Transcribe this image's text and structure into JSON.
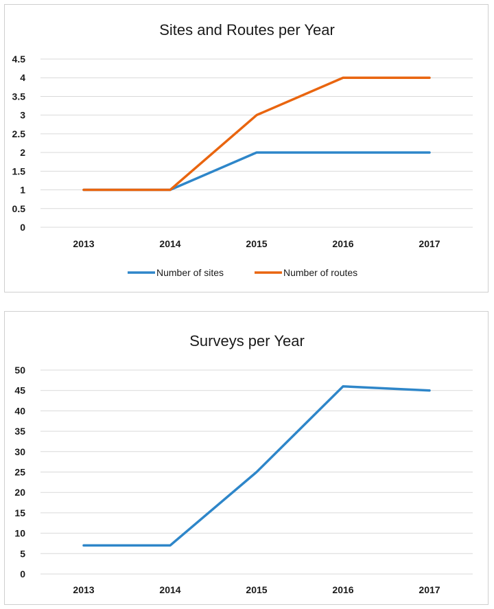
{
  "chart_data": [
    {
      "type": "line",
      "title": "Sites and Routes per Year",
      "categories": [
        "2013",
        "2014",
        "2015",
        "2016",
        "2017"
      ],
      "yticks": [
        "0",
        "0.5",
        "1",
        "1.5",
        "2",
        "2.5",
        "3",
        "3.5",
        "4",
        "4.5"
      ],
      "ylim": [
        0,
        4.5
      ],
      "grid": true,
      "legend": "bottom",
      "series": [
        {
          "name": "Number of sites",
          "values": [
            1,
            1,
            2,
            2,
            2
          ],
          "color": "#2e86c9"
        },
        {
          "name": "Number of routes",
          "values": [
            1,
            1,
            3,
            4,
            4
          ],
          "color": "#e9650f"
        }
      ]
    },
    {
      "type": "line",
      "title": "Surveys per Year",
      "categories": [
        "2013",
        "2014",
        "2015",
        "2016",
        "2017"
      ],
      "yticks": [
        "0",
        "5",
        "10",
        "15",
        "20",
        "25",
        "30",
        "35",
        "40",
        "45",
        "50"
      ],
      "ylim": [
        0,
        50
      ],
      "grid": true,
      "legend": "none",
      "series": [
        {
          "values": [
            7,
            7,
            25,
            46,
            45
          ],
          "color": "#2e86c9"
        }
      ]
    }
  ]
}
